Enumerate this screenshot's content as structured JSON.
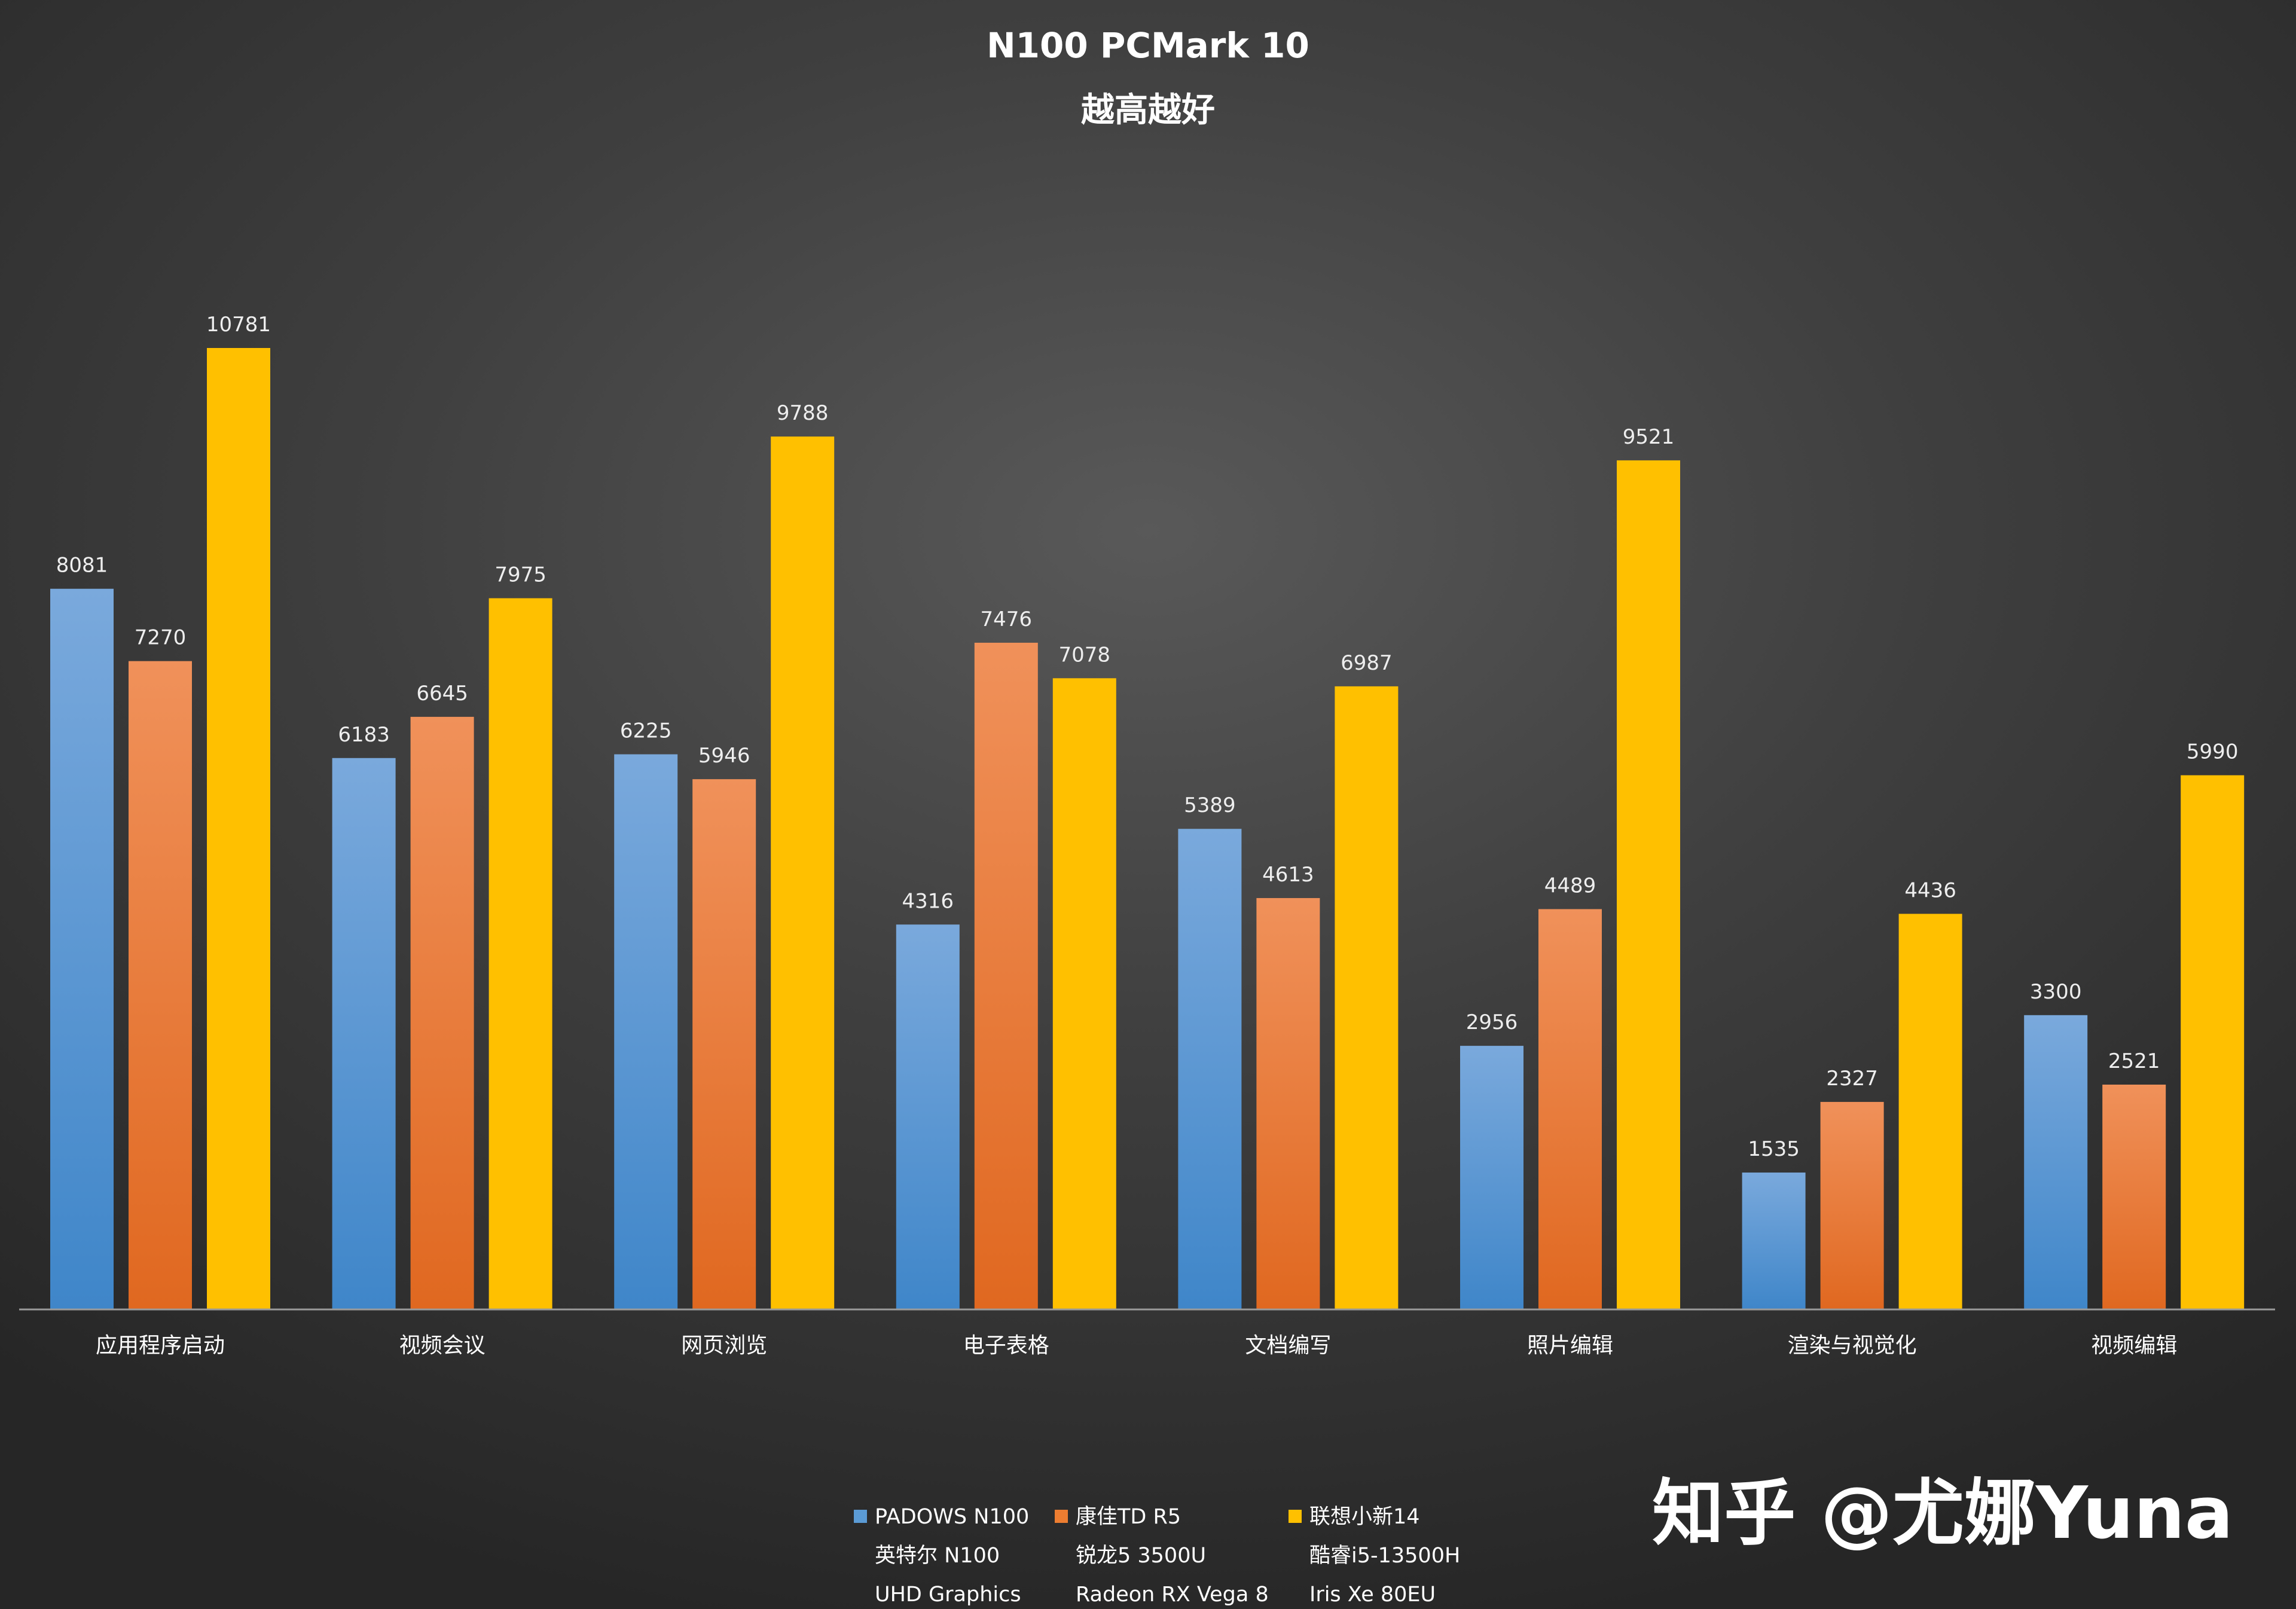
{
  "chart_data": {
    "type": "bar",
    "title": "N100 PCMark 10",
    "subtitle": "越高越好",
    "categories": [
      "应用程序启动",
      "视频会议",
      "网页浏览",
      "电子表格",
      "文档编写",
      "照片编辑",
      "渲染与视觉化",
      "视频编辑"
    ],
    "series": [
      {
        "name": "PADOWS N100",
        "lines": [
          "PADOWS N100",
          "英特尔 N100",
          "UHD Graphics"
        ],
        "color": "#5b9bd5",
        "values": [
          8081,
          6183,
          6225,
          4316,
          5389,
          2956,
          1535,
          3300
        ]
      },
      {
        "name": "康佳TD R5",
        "lines": [
          "康佳TD R5",
          "锐龙5 3500U",
          "Radeon RX Vega 8"
        ],
        "color": "#ed7d31",
        "values": [
          7270,
          6645,
          5946,
          7476,
          4613,
          4489,
          2327,
          2521
        ]
      },
      {
        "name": "联想小新14",
        "lines": [
          "联想小新14",
          "酷睿i5-13500H",
          "Iris Xe 80EU"
        ],
        "color": "#ffc000",
        "values": [
          10781,
          7975,
          9788,
          7078,
          6987,
          9521,
          4436,
          5990
        ]
      }
    ],
    "ylim": [
      0,
      12000
    ],
    "xlabel": "",
    "ylabel": "",
    "grid": false,
    "legend_position": "bottom-center"
  },
  "watermark": "知乎 @尤娜Yuna"
}
